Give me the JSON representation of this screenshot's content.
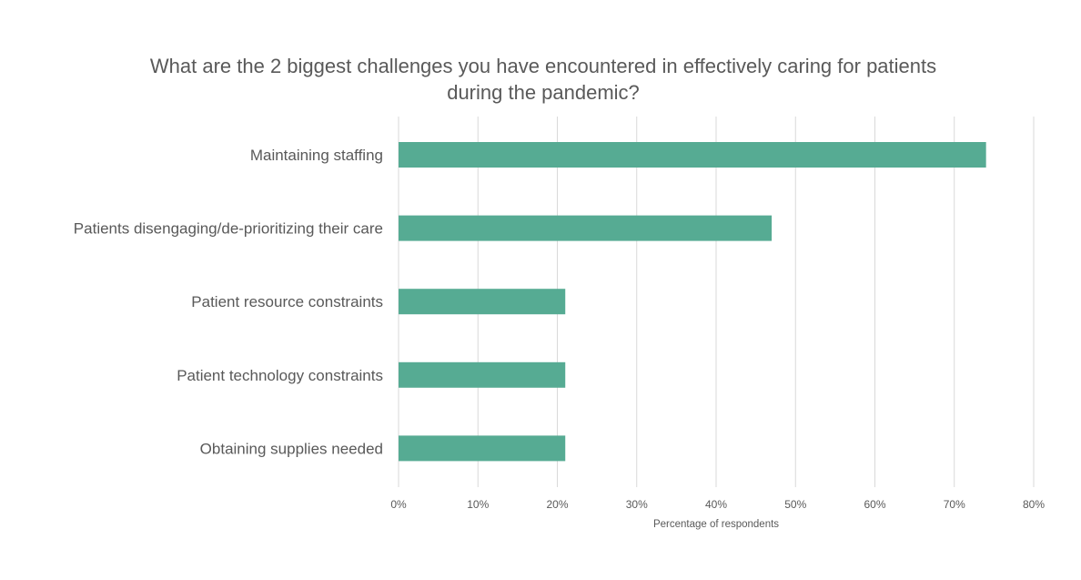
{
  "chart_data": {
    "type": "bar",
    "orientation": "horizontal",
    "title": "What are the 2 biggest challenges you have encountered in effectively caring for patients during the pandemic?",
    "categories": [
      "Maintaining staffing",
      "Patients disengaging/de-prioritizing their care",
      "Patient resource constraints",
      "Patient technology constraints",
      "Obtaining supplies needed"
    ],
    "values": [
      74,
      47,
      21,
      21,
      21
    ],
    "xlabel": "Percentage of respondents",
    "ylabel": "",
    "xlim": [
      0,
      80
    ],
    "xticks": [
      "0%",
      "10%",
      "20%",
      "30%",
      "40%",
      "50%",
      "60%",
      "70%",
      "80%"
    ],
    "grid": "vertical",
    "legend": "none",
    "bar_color": "#56ab93",
    "grid_color": "#d9d9d9"
  }
}
